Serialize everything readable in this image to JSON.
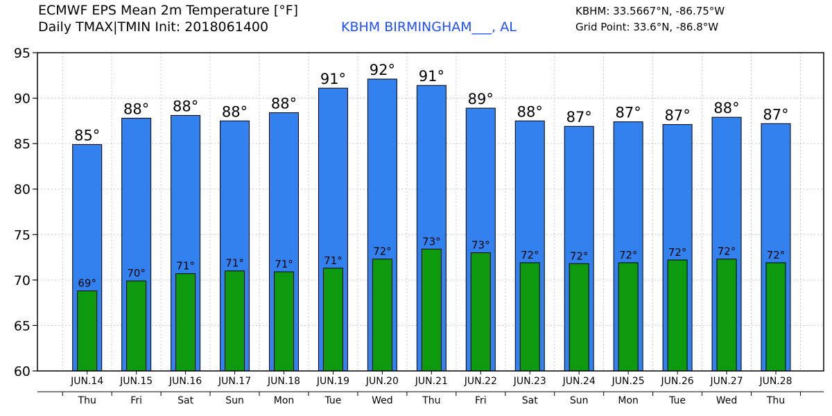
{
  "header": {
    "title_line1": "ECMWF EPS Mean 2m Temperature [°F]",
    "title_line2": "Daily TMAX|TMIN Init: 2018061400",
    "station": "KBHM BIRMINGHAM___, AL",
    "station_coords": "KBHM: 33.5667°N, -86.75°W",
    "grid_point": "Grid Point: 33.6°N, -86.8°W"
  },
  "colors": {
    "tmax_bar": "#3381ee",
    "tmin_bar": "#0e9a0e",
    "grid": "#c8c8c8",
    "station_text": "#1f4fff"
  },
  "chart_data": {
    "type": "bar",
    "title": "ECMWF EPS Mean 2m Temperature [°F]",
    "subtitle": "Daily TMAX|TMIN Init: 2018061400",
    "ylim": [
      60,
      95
    ],
    "yticks": [
      60,
      65,
      70,
      75,
      80,
      85,
      90,
      95
    ],
    "grid": true,
    "categories": [
      "JUN.14",
      "JUN.15",
      "JUN.16",
      "JUN.17",
      "JUN.18",
      "JUN.19",
      "JUN.20",
      "JUN.21",
      "JUN.22",
      "JUN.23",
      "JUN.24",
      "JUN.25",
      "JUN.26",
      "JUN.27",
      "JUN.28"
    ],
    "days": [
      "Thu",
      "Fri",
      "Sat",
      "Sun",
      "Mon",
      "Tue",
      "Wed",
      "Thu",
      "Fri",
      "Sat",
      "Sun",
      "Mon",
      "Tue",
      "Wed",
      "Thu"
    ],
    "series": [
      {
        "values": [
          84.9,
          87.8,
          88.1,
          87.5,
          88.4,
          91.1,
          92.1,
          91.4,
          88.9,
          87.5,
          86.9,
          87.4,
          87.1,
          87.9,
          87.2
        ],
        "labels": [
          "85°",
          "88°",
          "88°",
          "88°",
          "88°",
          "91°",
          "92°",
          "91°",
          "89°",
          "88°",
          "87°",
          "87°",
          "87°",
          "88°",
          "87°"
        ]
      },
      {
        "values": [
          68.8,
          69.9,
          70.7,
          71.0,
          70.9,
          71.3,
          72.3,
          73.4,
          73.0,
          71.9,
          71.8,
          71.9,
          72.2,
          72.3,
          71.9
        ],
        "labels": [
          "69°",
          "70°",
          "71°",
          "71°",
          "71°",
          "71°",
          "72°",
          "73°",
          "73°",
          "72°",
          "72°",
          "72°",
          "72°",
          "72°",
          "72°"
        ]
      }
    ]
  }
}
